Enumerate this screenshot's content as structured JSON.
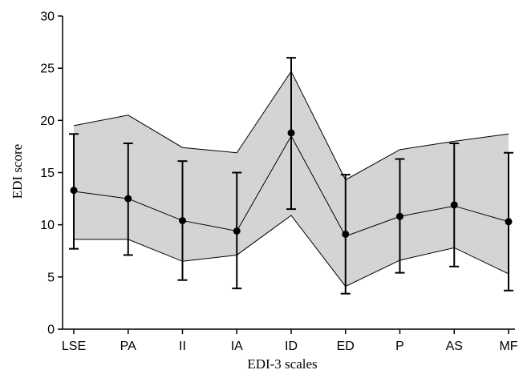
{
  "chart_data": {
    "type": "line",
    "xlabel": "EDI-3 scales",
    "ylabel": "EDI score",
    "ylim": [
      0,
      30
    ],
    "yticks": [
      0,
      5,
      10,
      15,
      20,
      25,
      30
    ],
    "grid": false,
    "categories": [
      "LSE",
      "PA",
      "II",
      "IA",
      "ID",
      "ED",
      "P",
      "AS",
      "MF"
    ],
    "series": [
      {
        "values": [
          13.3,
          12.5,
          10.4,
          9.4,
          18.8,
          9.1,
          10.8,
          11.9,
          10.3
        ],
        "error_low": [
          7.7,
          7.1,
          4.7,
          3.9,
          11.5,
          3.4,
          5.4,
          6.0,
          3.7
        ],
        "error_high": [
          18.7,
          17.8,
          16.1,
          15.0,
          26.0,
          14.8,
          16.3,
          17.8,
          16.9
        ]
      }
    ],
    "reference_band": {
      "upper": [
        19.5,
        20.5,
        17.4,
        16.9,
        24.7,
        14.3,
        17.2,
        18.0,
        18.7
      ],
      "middle": [
        13.2,
        12.5,
        10.4,
        9.4,
        18.5,
        8.9,
        10.8,
        11.8,
        10.3
      ],
      "lower": [
        8.6,
        8.6,
        6.5,
        7.1,
        10.9,
        4.1,
        6.6,
        7.8,
        5.3
      ],
      "fill_color": "#d4d4d4"
    },
    "colors": {
      "line": "#000000",
      "marker": "#000000"
    }
  }
}
